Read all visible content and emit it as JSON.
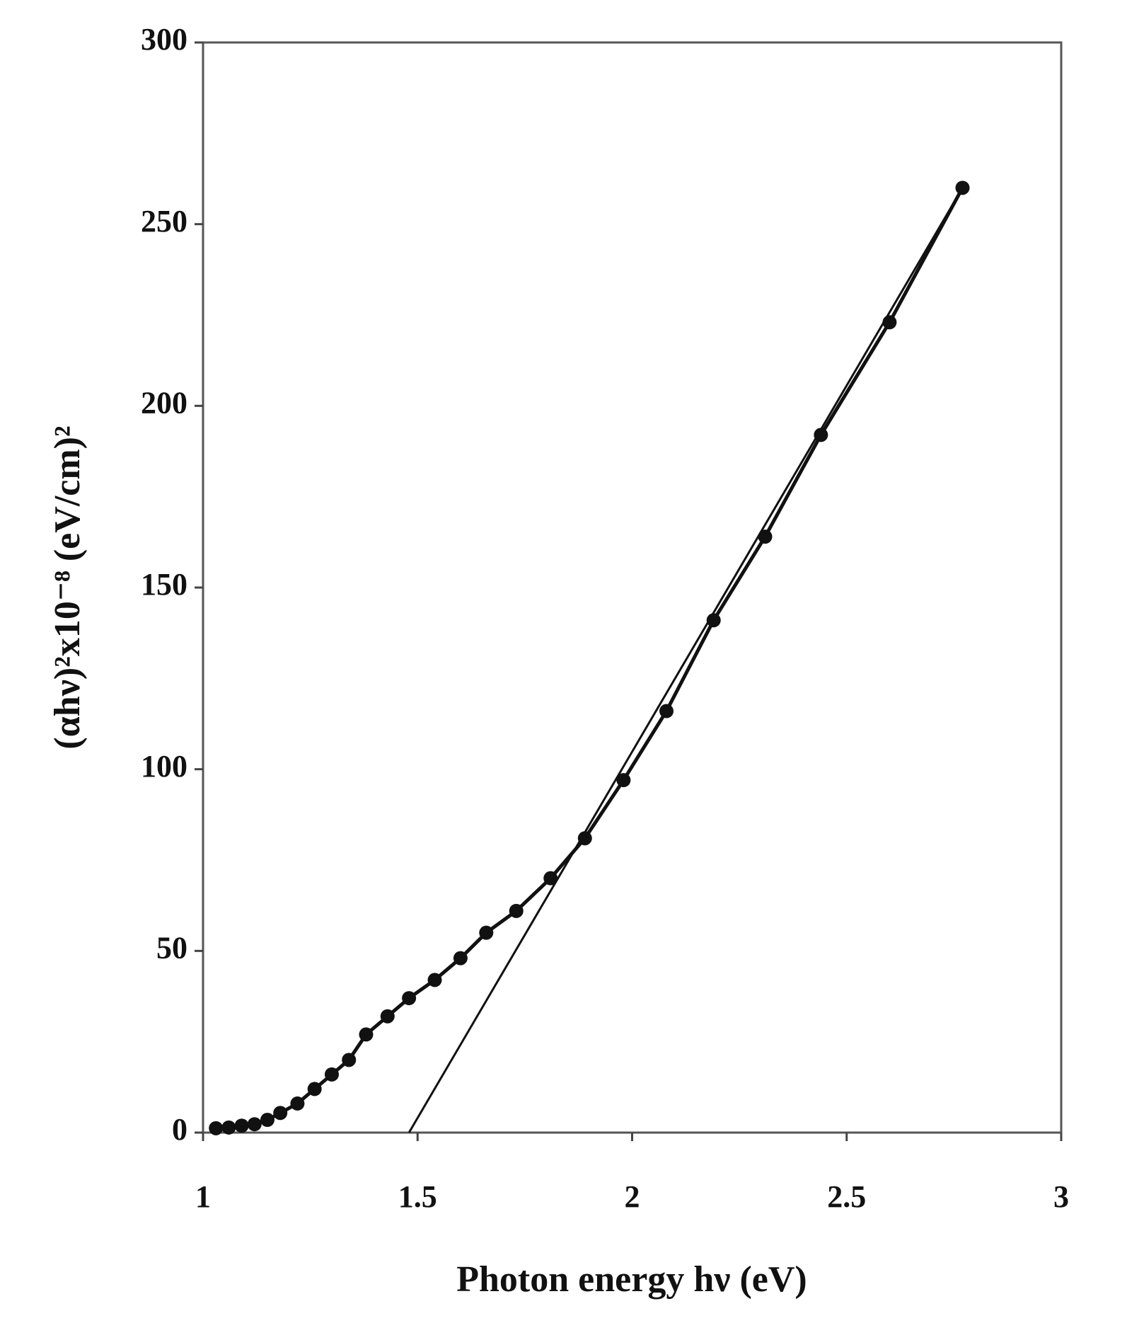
{
  "chart_data": {
    "type": "line",
    "x_label": "Photon energy hν (eV)",
    "y_label": "(αhν)²x10⁻⁸ (eV/cm)²",
    "xlim": [
      1,
      3
    ],
    "xticks": [
      1,
      1.5,
      2,
      2.5,
      3
    ],
    "ylim": [
      0,
      300
    ],
    "yticks": [
      0,
      50,
      100,
      150,
      200,
      250,
      300
    ],
    "grid": false,
    "series": [
      {
        "color": "#111111",
        "marker": "circle",
        "x": [
          1.03,
          1.06,
          1.09,
          1.12,
          1.15,
          1.18,
          1.22,
          1.26,
          1.3,
          1.34,
          1.38,
          1.43,
          1.48,
          1.54,
          1.6,
          1.66,
          1.73,
          1.81,
          1.89,
          1.98,
          2.08,
          2.19,
          2.31,
          2.44,
          2.6,
          2.77
        ],
        "values": [
          1.2,
          1.4,
          1.9,
          2.3,
          3.5,
          5.4,
          8,
          12,
          16,
          20,
          27,
          32,
          37,
          42,
          48,
          55,
          61,
          70,
          81,
          97,
          116,
          141,
          164,
          192,
          223,
          260
        ]
      },
      {
        "color": "#111111",
        "marker": "none",
        "x": [
          1.48,
          2.77
        ],
        "values": [
          0,
          260
        ]
      }
    ]
  }
}
